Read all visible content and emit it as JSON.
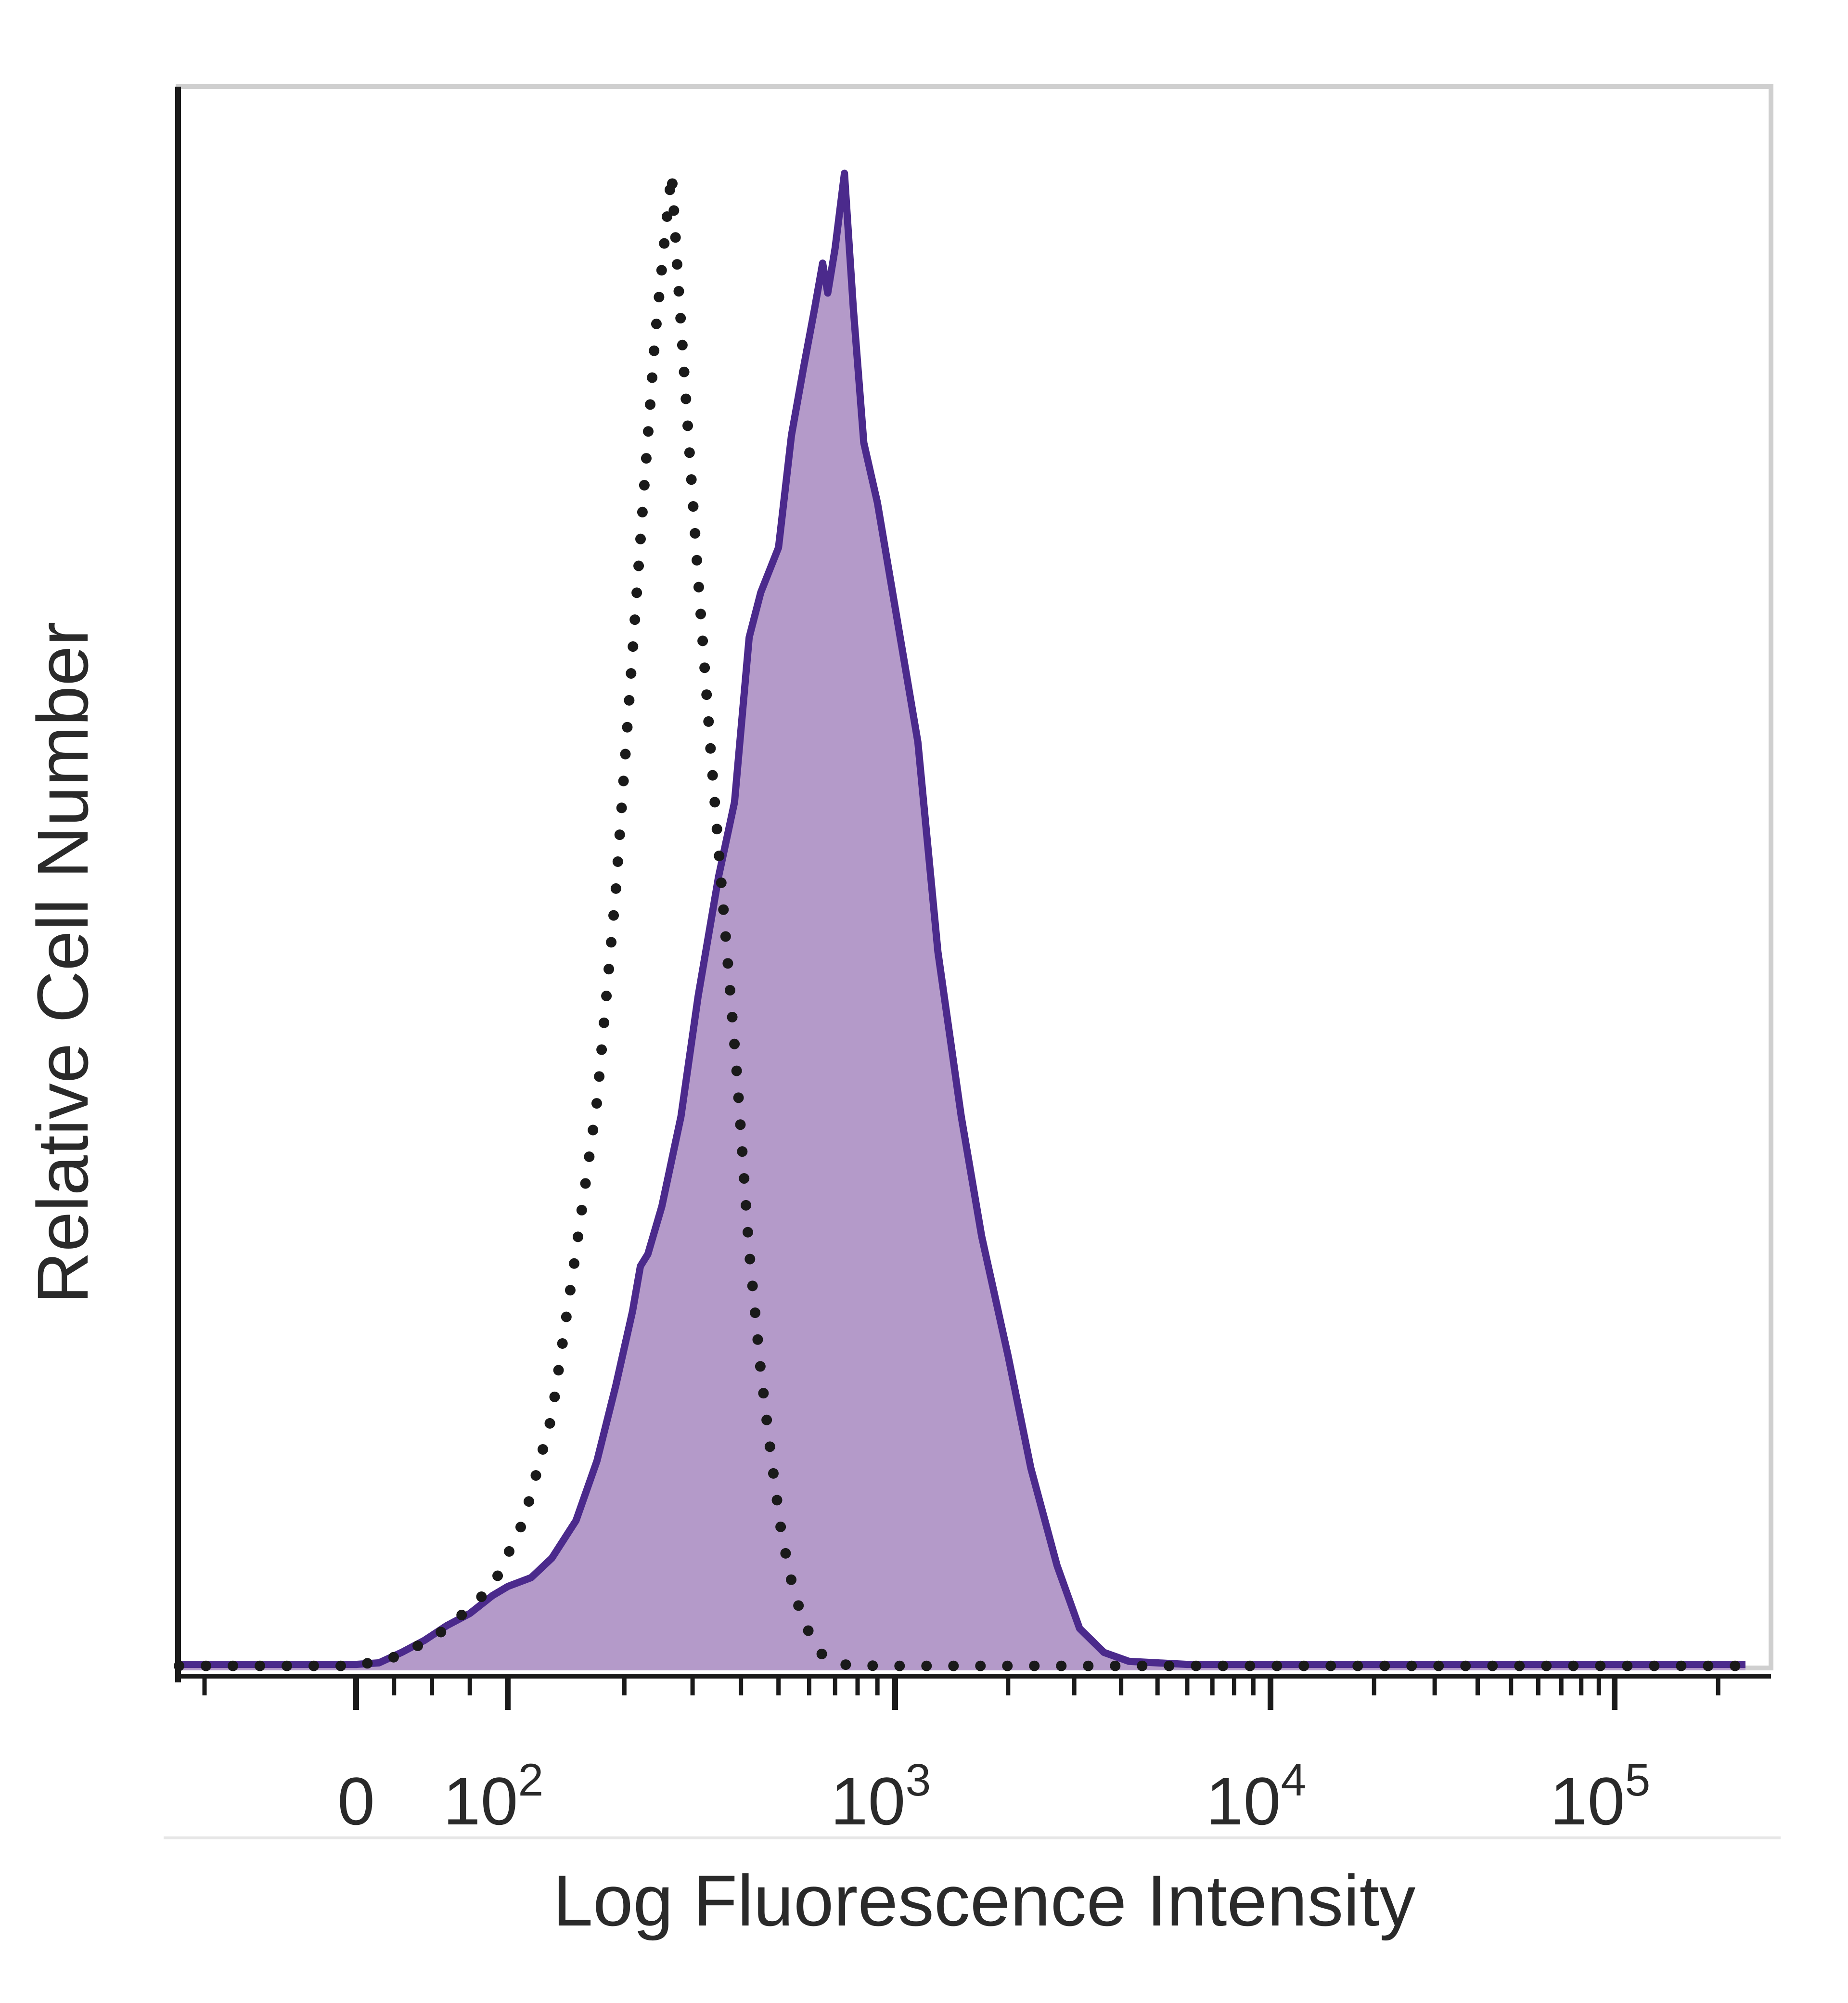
{
  "chart_data": {
    "type": "area",
    "title": "",
    "xlabel": "Log Fluorescence Intensity",
    "ylabel": "Relative Cell Number",
    "x_scale": "biexponential",
    "xlim": [
      -60,
      240000
    ],
    "ylim": [
      0,
      100
    ],
    "x_ticks": [
      {
        "value": 0,
        "label": "0"
      },
      {
        "value": 100,
        "label": "10",
        "exponent": "2"
      },
      {
        "value": 1000,
        "label": "10",
        "exponent": "3"
      },
      {
        "value": 10000,
        "label": "10",
        "exponent": "4"
      },
      {
        "value": 100000,
        "label": "10",
        "exponent": "5"
      }
    ],
    "grid": false,
    "legend": "none",
    "series": [
      {
        "style": "filled",
        "fill_color": "#b49ac9",
        "line_color": "#4b2a8c",
        "points": [
          [
            -60,
            0.4
          ],
          [
            0,
            0.4
          ],
          [
            15,
            0.5
          ],
          [
            30,
            1.2
          ],
          [
            45,
            2.0
          ],
          [
            60,
            3.0
          ],
          [
            75,
            3.8
          ],
          [
            90,
            5.0
          ],
          [
            100,
            5.6
          ],
          [
            115,
            6.2
          ],
          [
            130,
            7.5
          ],
          [
            150,
            10.0
          ],
          [
            170,
            14.0
          ],
          [
            190,
            19.0
          ],
          [
            210,
            24.0
          ],
          [
            220,
            27.0
          ],
          [
            230,
            27.8
          ],
          [
            250,
            31.0
          ],
          [
            280,
            37.0
          ],
          [
            310,
            45.0
          ],
          [
            350,
            53.0
          ],
          [
            385,
            58.0
          ],
          [
            420,
            69.0
          ],
          [
            450,
            72.0
          ],
          [
            500,
            75.0
          ],
          [
            540,
            82.5
          ],
          [
            580,
            87.0
          ],
          [
            620,
            91.0
          ],
          [
            650,
            94.0
          ],
          [
            670,
            92.0
          ],
          [
            700,
            95.0
          ],
          [
            740,
            100.0
          ],
          [
            780,
            91.0
          ],
          [
            830,
            82.0
          ],
          [
            900,
            78.0
          ],
          [
            1000,
            71.0
          ],
          [
            1150,
            62.0
          ],
          [
            1300,
            48.0
          ],
          [
            1500,
            37.0
          ],
          [
            1700,
            29.0
          ],
          [
            2000,
            21.0
          ],
          [
            2300,
            13.5
          ],
          [
            2700,
            7.0
          ],
          [
            3100,
            2.8
          ],
          [
            3600,
            1.2
          ],
          [
            4200,
            0.6
          ],
          [
            6000,
            0.4
          ],
          [
            20000,
            0.4
          ],
          [
            100000,
            0.4
          ],
          [
            240000,
            0.4
          ]
        ]
      },
      {
        "style": "dotted",
        "line_color": "#1a1a1a",
        "points": [
          [
            -60,
            0.3
          ],
          [
            0,
            0.3
          ],
          [
            30,
            1.0
          ],
          [
            60,
            2.8
          ],
          [
            90,
            5.6
          ],
          [
            110,
            10.0
          ],
          [
            130,
            17.0
          ],
          [
            150,
            28.0
          ],
          [
            170,
            38.0
          ],
          [
            190,
            52.0
          ],
          [
            210,
            68.0
          ],
          [
            225,
            79.0
          ],
          [
            240,
            89.0
          ],
          [
            255,
            96.0
          ],
          [
            265,
            100.0
          ],
          [
            275,
            93.0
          ],
          [
            290,
            84.0
          ],
          [
            310,
            73.0
          ],
          [
            335,
            61.0
          ],
          [
            360,
            51.0
          ],
          [
            390,
            40.0
          ],
          [
            420,
            28.0
          ],
          [
            450,
            20.0
          ],
          [
            480,
            14.0
          ],
          [
            510,
            9.0
          ],
          [
            550,
            5.0
          ],
          [
            600,
            2.5
          ],
          [
            650,
            1.0
          ],
          [
            720,
            0.4
          ],
          [
            900,
            0.3
          ],
          [
            240000,
            0.3
          ]
        ]
      }
    ]
  }
}
